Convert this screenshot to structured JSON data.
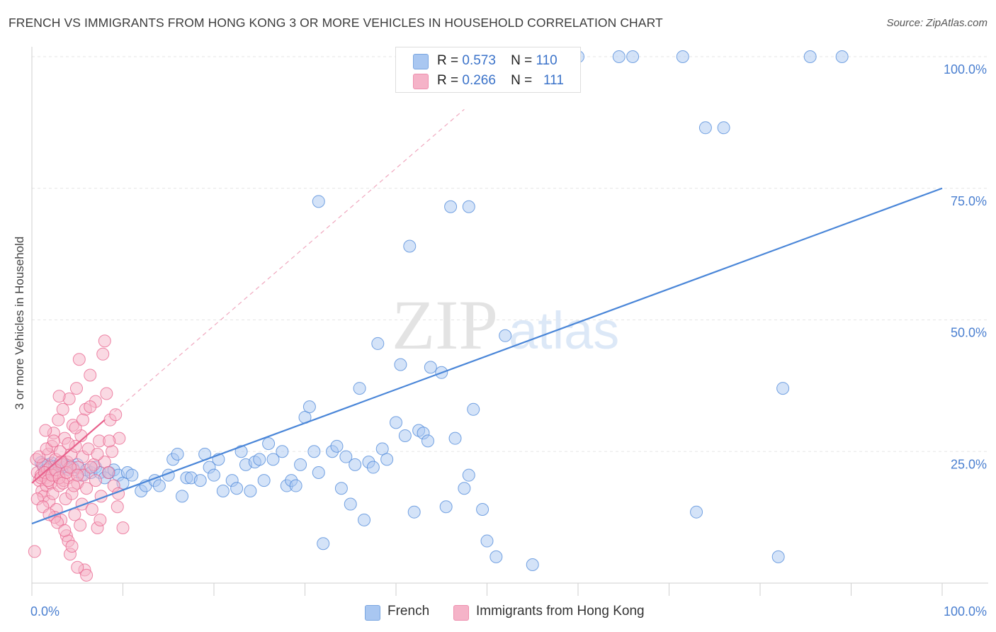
{
  "title": "FRENCH VS IMMIGRANTS FROM HONG KONG 3 OR MORE VEHICLES IN HOUSEHOLD CORRELATION CHART",
  "source": "Source: ZipAtlas.com",
  "watermark": {
    "zip": "ZIP",
    "atlas": "atlas"
  },
  "stats": [
    {
      "r_label": "R =",
      "r_value": "0.573",
      "n_label": "N =",
      "n_value": "110",
      "color": "#a9c7f1"
    },
    {
      "r_label": "R =",
      "r_value": "0.266",
      "n_label": "N =",
      "n_value": "111",
      "color": "#f5b3c8"
    }
  ],
  "legend": [
    {
      "label": "French",
      "color": "#a9c7f1"
    },
    {
      "label": "Immigrants from Hong Kong",
      "color": "#f5b3c8"
    }
  ],
  "chart_data": {
    "type": "scatter",
    "title": "FRENCH VS IMMIGRANTS FROM HONG KONG 3 OR MORE VEHICLES IN HOUSEHOLD CORRELATION CHART",
    "xlabel": "",
    "ylabel": "3 or more Vehicles in Household",
    "xlim": [
      0,
      100
    ],
    "ylim": [
      0,
      100
    ],
    "x_tick_labels": [
      "0.0%",
      "100.0%"
    ],
    "y_tick_labels": [
      {
        "value": 25,
        "label": "25.0%"
      },
      {
        "value": 50,
        "label": "50.0%"
      },
      {
        "value": 75,
        "label": "75.0%"
      },
      {
        "value": 100,
        "label": "100.0%"
      }
    ],
    "grid": true,
    "legend_position": "bottom-center",
    "series": [
      {
        "name": "French",
        "color": "#4a86d8",
        "fill": "#a9c7f1",
        "trend": {
          "x": [
            0,
            100
          ],
          "y": [
            11.3,
            75.0
          ],
          "style": "solid"
        },
        "points": [
          [
            1.0,
            22.9
          ],
          [
            1.3,
            22.0
          ],
          [
            1.5,
            21.5
          ],
          [
            1.8,
            22.5
          ],
          [
            2.0,
            21.3
          ],
          [
            2.2,
            22.8
          ],
          [
            2.5,
            22.2
          ],
          [
            2.7,
            21.7
          ],
          [
            3.0,
            22.4
          ],
          [
            3.3,
            21.9
          ],
          [
            3.5,
            22.5
          ],
          [
            3.8,
            22.1
          ],
          [
            4.0,
            21.6
          ],
          [
            4.5,
            22.0
          ],
          [
            5.0,
            22.5
          ],
          [
            5.5,
            20.5
          ],
          [
            6.0,
            21.5
          ],
          [
            6.5,
            21.0
          ],
          [
            7.0,
            22.0
          ],
          [
            7.5,
            21.0
          ],
          [
            8.0,
            20.0
          ],
          [
            8.5,
            21.0
          ],
          [
            9.0,
            21.5
          ],
          [
            9.5,
            20.5
          ],
          [
            10.0,
            19.0
          ],
          [
            10.5,
            21.0
          ],
          [
            11.0,
            20.5
          ],
          [
            12.0,
            17.5
          ],
          [
            12.5,
            18.5
          ],
          [
            13.5,
            19.5
          ],
          [
            14.0,
            18.5
          ],
          [
            15.0,
            20.5
          ],
          [
            15.5,
            23.5
          ],
          [
            16.0,
            24.5
          ],
          [
            16.5,
            16.5
          ],
          [
            17.0,
            20.0
          ],
          [
            17.5,
            20.0
          ],
          [
            18.5,
            19.5
          ],
          [
            19.0,
            24.5
          ],
          [
            19.5,
            22.0
          ],
          [
            20.0,
            20.5
          ],
          [
            20.5,
            23.5
          ],
          [
            21.0,
            17.5
          ],
          [
            22.0,
            19.5
          ],
          [
            22.5,
            18.0
          ],
          [
            23.0,
            25.0
          ],
          [
            23.5,
            22.5
          ],
          [
            24.0,
            17.5
          ],
          [
            24.5,
            23.0
          ],
          [
            25.0,
            23.5
          ],
          [
            25.5,
            19.5
          ],
          [
            26.0,
            26.5
          ],
          [
            26.5,
            23.5
          ],
          [
            27.5,
            25.0
          ],
          [
            28.0,
            18.5
          ],
          [
            28.5,
            19.5
          ],
          [
            29.0,
            18.5
          ],
          [
            29.5,
            22.5
          ],
          [
            30.0,
            31.5
          ],
          [
            30.5,
            33.5
          ],
          [
            31.0,
            25.0
          ],
          [
            31.5,
            21.0
          ],
          [
            32.0,
            7.5
          ],
          [
            33.0,
            25.0
          ],
          [
            33.5,
            26.0
          ],
          [
            34.0,
            18.0
          ],
          [
            34.5,
            24.0
          ],
          [
            35.0,
            15.0
          ],
          [
            35.5,
            22.5
          ],
          [
            36.0,
            37.0
          ],
          [
            36.5,
            12.0
          ],
          [
            37.0,
            23.0
          ],
          [
            37.5,
            22.0
          ],
          [
            38.0,
            45.5
          ],
          [
            38.5,
            25.5
          ],
          [
            39.0,
            23.5
          ],
          [
            40.0,
            30.5
          ],
          [
            40.5,
            41.5
          ],
          [
            41.0,
            28.0
          ],
          [
            41.5,
            64.0
          ],
          [
            42.0,
            13.5
          ],
          [
            42.5,
            29.0
          ],
          [
            43.0,
            28.5
          ],
          [
            43.5,
            27.0
          ],
          [
            43.8,
            41.0
          ],
          [
            45.0,
            40.0
          ],
          [
            45.5,
            14.5
          ],
          [
            46.0,
            71.5
          ],
          [
            46.5,
            27.5
          ],
          [
            47.5,
            18.0
          ],
          [
            48.0,
            20.5
          ],
          [
            48.5,
            33.0
          ],
          [
            49.5,
            14.0
          ],
          [
            50.0,
            8.0
          ],
          [
            51.0,
            5.0
          ],
          [
            52.0,
            47.0
          ],
          [
            55.0,
            3.5
          ],
          [
            60.0,
            100.0
          ],
          [
            64.5,
            100.0
          ],
          [
            66.0,
            100.0
          ],
          [
            71.5,
            100.0
          ],
          [
            73.0,
            13.5
          ],
          [
            74.0,
            86.5
          ],
          [
            76.0,
            86.5
          ],
          [
            82.0,
            5.0
          ],
          [
            82.5,
            37.0
          ],
          [
            85.5,
            100.0
          ],
          [
            89.0,
            100.0
          ],
          [
            31.5,
            72.5
          ],
          [
            48.0,
            71.5
          ]
        ]
      },
      {
        "name": "Immigrants from Hong Kong",
        "color": "#e8608b",
        "fill": "#f5b3c8",
        "trend": {
          "x": [
            0,
            8
          ],
          "y": [
            19.0,
            31.0
          ],
          "style": "solid",
          "extension": {
            "x": [
              0,
              47.5
            ],
            "y": [
              19.0,
              90.0
            ],
            "style": "dashed"
          }
        },
        "points": [
          [
            0.3,
            6.0
          ],
          [
            0.5,
            23.5
          ],
          [
            0.6,
            21.0
          ],
          [
            0.8,
            19.5
          ],
          [
            1.0,
            20.5
          ],
          [
            1.1,
            17.5
          ],
          [
            1.2,
            22.5
          ],
          [
            1.3,
            16.5
          ],
          [
            1.5,
            20.0
          ],
          [
            1.6,
            18.5
          ],
          [
            1.7,
            21.5
          ],
          [
            1.8,
            24.5
          ],
          [
            1.9,
            15.5
          ],
          [
            2.0,
            22.0
          ],
          [
            2.1,
            19.0
          ],
          [
            2.2,
            26.0
          ],
          [
            2.3,
            17.0
          ],
          [
            2.4,
            28.5
          ],
          [
            2.5,
            20.5
          ],
          [
            2.6,
            23.5
          ],
          [
            2.7,
            14.0
          ],
          [
            2.8,
            21.0
          ],
          [
            2.9,
            31.0
          ],
          [
            3.0,
            18.5
          ],
          [
            3.1,
            25.0
          ],
          [
            3.2,
            12.0
          ],
          [
            3.3,
            22.5
          ],
          [
            3.4,
            33.0
          ],
          [
            3.5,
            19.5
          ],
          [
            3.6,
            27.5
          ],
          [
            3.7,
            16.0
          ],
          [
            3.8,
            9.0
          ],
          [
            3.9,
            23.0
          ],
          [
            4.0,
            20.0
          ],
          [
            4.1,
            35.0
          ],
          [
            4.2,
            5.5
          ],
          [
            4.3,
            24.5
          ],
          [
            4.4,
            17.0
          ],
          [
            4.5,
            30.0
          ],
          [
            4.6,
            21.5
          ],
          [
            4.7,
            13.0
          ],
          [
            4.8,
            26.0
          ],
          [
            4.9,
            37.0
          ],
          [
            5.0,
            19.0
          ],
          [
            5.1,
            22.0
          ],
          [
            5.2,
            42.5
          ],
          [
            5.3,
            11.0
          ],
          [
            5.4,
            28.0
          ],
          [
            5.5,
            15.0
          ],
          [
            5.6,
            24.0
          ],
          [
            5.7,
            20.5
          ],
          [
            5.8,
            2.5
          ],
          [
            5.9,
            33.0
          ],
          [
            6.0,
            18.0
          ],
          [
            6.2,
            25.5
          ],
          [
            6.4,
            39.5
          ],
          [
            6.6,
            14.0
          ],
          [
            6.8,
            22.5
          ],
          [
            7.0,
            34.5
          ],
          [
            7.2,
            10.5
          ],
          [
            7.4,
            27.0
          ],
          [
            7.6,
            16.5
          ],
          [
            7.8,
            43.5
          ],
          [
            8.0,
            23.0
          ],
          [
            8.2,
            36.0
          ],
          [
            8.4,
            21.0
          ],
          [
            8.6,
            31.0
          ],
          [
            8.8,
            25.0
          ],
          [
            9.0,
            18.5
          ],
          [
            9.2,
            32.0
          ],
          [
            9.4,
            14.5
          ],
          [
            9.6,
            27.5
          ],
          [
            6.0,
            1.5
          ],
          [
            8.0,
            46.0
          ],
          [
            5.0,
            3.0
          ],
          [
            1.5,
            29.0
          ],
          [
            2.5,
            12.5
          ],
          [
            3.0,
            35.5
          ],
          [
            4.0,
            8.0
          ],
          [
            6.5,
            22.0
          ],
          [
            7.0,
            19.5
          ],
          [
            7.5,
            12.0
          ],
          [
            8.5,
            27.0
          ],
          [
            9.5,
            17.0
          ],
          [
            10.0,
            10.5
          ],
          [
            1.0,
            20.0
          ],
          [
            1.4,
            21.0
          ],
          [
            1.8,
            19.5
          ],
          [
            2.2,
            20.5
          ],
          [
            2.6,
            21.5
          ],
          [
            3.0,
            20.0
          ],
          [
            3.4,
            19.0
          ],
          [
            3.8,
            21.0
          ],
          [
            4.2,
            22.0
          ],
          [
            4.6,
            18.5
          ],
          [
            5.0,
            20.5
          ],
          [
            0.8,
            24.0
          ],
          [
            1.6,
            25.5
          ],
          [
            2.4,
            27.0
          ],
          [
            3.2,
            23.0
          ],
          [
            4.0,
            26.5
          ],
          [
            4.8,
            29.5
          ],
          [
            5.6,
            31.0
          ],
          [
            6.4,
            33.5
          ],
          [
            7.2,
            24.5
          ],
          [
            0.6,
            16.0
          ],
          [
            1.2,
            14.5
          ],
          [
            1.9,
            13.0
          ],
          [
            2.8,
            11.5
          ],
          [
            3.6,
            10.0
          ],
          [
            4.4,
            7.0
          ]
        ]
      }
    ]
  }
}
